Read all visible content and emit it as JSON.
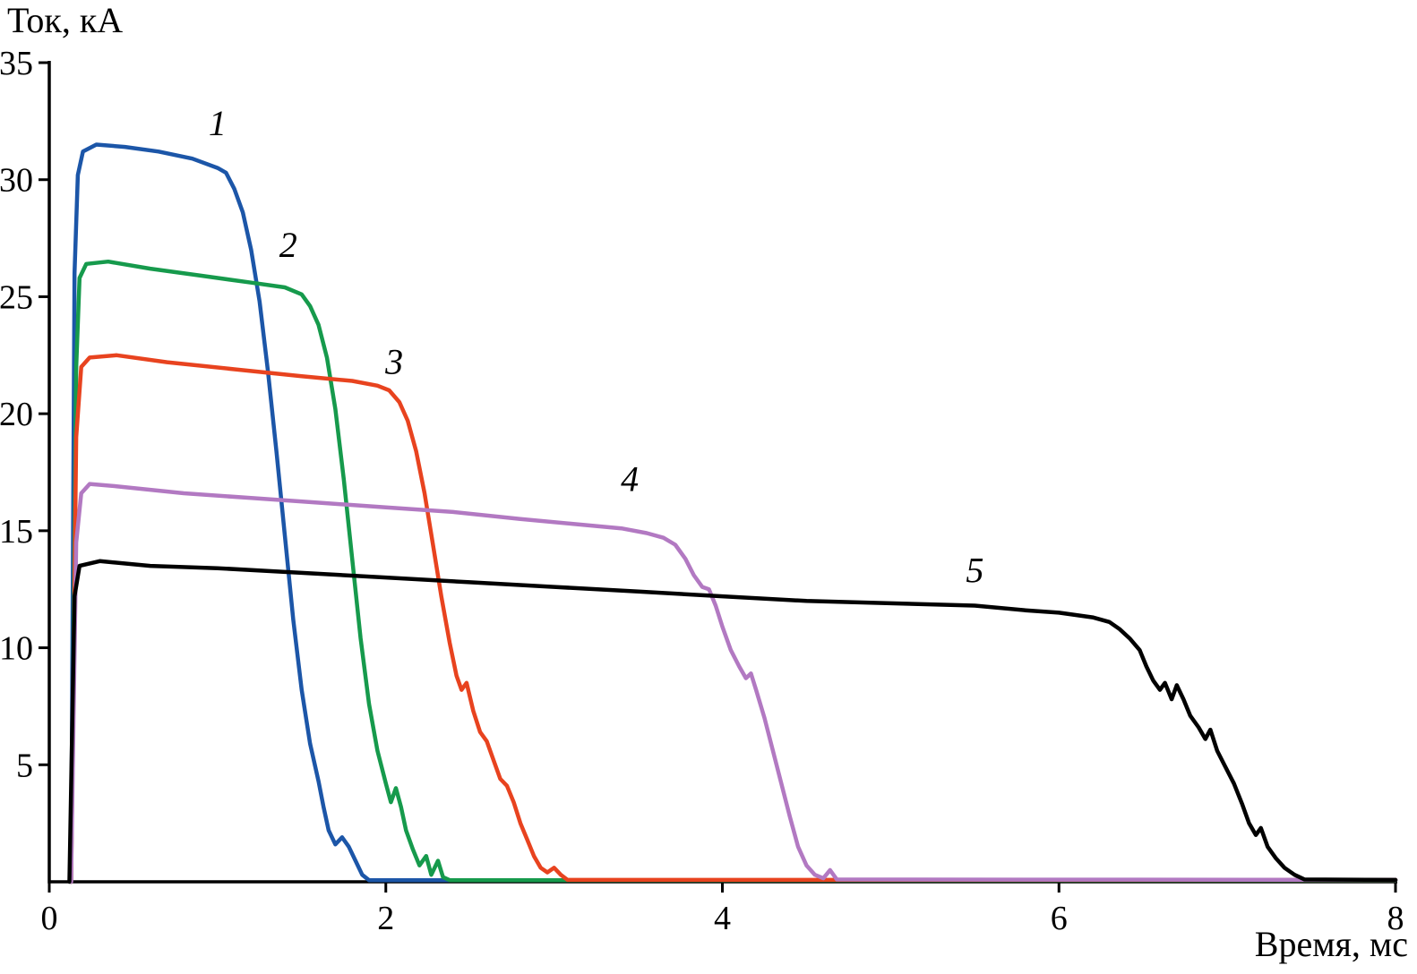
{
  "chart_data": {
    "type": "line",
    "title": "",
    "xlabel": "Время, мс",
    "ylabel": "Ток, кА",
    "xlim": [
      0,
      8
    ],
    "ylim": [
      0,
      35
    ],
    "x_ticks": [
      0,
      2,
      4,
      6,
      8
    ],
    "y_ticks": [
      5,
      10,
      15,
      20,
      25,
      30,
      35
    ],
    "grid": false,
    "legend_position": "none",
    "annotation_style": "italic numbers placed above each curve",
    "series": [
      {
        "name": "1",
        "color": "#1c56a8",
        "label_pos": [
          1.0,
          31.9
        ],
        "points": [
          [
            0.13,
            0
          ],
          [
            0.15,
            26
          ],
          [
            0.17,
            30.2
          ],
          [
            0.2,
            31.2
          ],
          [
            0.28,
            31.5
          ],
          [
            0.45,
            31.4
          ],
          [
            0.65,
            31.2
          ],
          [
            0.85,
            30.9
          ],
          [
            1.0,
            30.5
          ],
          [
            1.05,
            30.3
          ],
          [
            1.1,
            29.6
          ],
          [
            1.15,
            28.6
          ],
          [
            1.2,
            27.0
          ],
          [
            1.25,
            24.8
          ],
          [
            1.3,
            21.8
          ],
          [
            1.35,
            18.4
          ],
          [
            1.4,
            14.8
          ],
          [
            1.45,
            11.2
          ],
          [
            1.5,
            8.2
          ],
          [
            1.55,
            5.9
          ],
          [
            1.6,
            4.3
          ],
          [
            1.63,
            3.2
          ],
          [
            1.66,
            2.2
          ],
          [
            1.7,
            1.6
          ],
          [
            1.74,
            1.9
          ],
          [
            1.78,
            1.5
          ],
          [
            1.82,
            0.9
          ],
          [
            1.86,
            0.3
          ],
          [
            1.9,
            0.07
          ],
          [
            8,
            0.07
          ]
        ]
      },
      {
        "name": "2",
        "color": "#169a4c",
        "label_pos": [
          1.42,
          26.7
        ],
        "points": [
          [
            0.13,
            0
          ],
          [
            0.16,
            22
          ],
          [
            0.18,
            25.8
          ],
          [
            0.22,
            26.4
          ],
          [
            0.35,
            26.5
          ],
          [
            0.6,
            26.2
          ],
          [
            0.9,
            25.9
          ],
          [
            1.2,
            25.6
          ],
          [
            1.4,
            25.4
          ],
          [
            1.5,
            25.1
          ],
          [
            1.55,
            24.6
          ],
          [
            1.6,
            23.8
          ],
          [
            1.65,
            22.4
          ],
          [
            1.7,
            20.2
          ],
          [
            1.75,
            17.2
          ],
          [
            1.8,
            13.8
          ],
          [
            1.85,
            10.4
          ],
          [
            1.9,
            7.6
          ],
          [
            1.95,
            5.6
          ],
          [
            2.0,
            4.2
          ],
          [
            2.03,
            3.4
          ],
          [
            2.06,
            4.0
          ],
          [
            2.09,
            3.2
          ],
          [
            2.12,
            2.2
          ],
          [
            2.16,
            1.4
          ],
          [
            2.2,
            0.7
          ],
          [
            2.24,
            1.1
          ],
          [
            2.27,
            0.3
          ],
          [
            2.31,
            0.9
          ],
          [
            2.34,
            0.2
          ],
          [
            2.38,
            0.07
          ],
          [
            8,
            0.07
          ]
        ]
      },
      {
        "name": "3",
        "color": "#e8431f",
        "label_pos": [
          2.05,
          21.7
        ],
        "points": [
          [
            0.13,
            0
          ],
          [
            0.16,
            19
          ],
          [
            0.19,
            22.0
          ],
          [
            0.24,
            22.4
          ],
          [
            0.4,
            22.5
          ],
          [
            0.7,
            22.2
          ],
          [
            1.1,
            21.9
          ],
          [
            1.5,
            21.6
          ],
          [
            1.8,
            21.4
          ],
          [
            1.95,
            21.2
          ],
          [
            2.02,
            21.0
          ],
          [
            2.08,
            20.5
          ],
          [
            2.13,
            19.7
          ],
          [
            2.18,
            18.4
          ],
          [
            2.23,
            16.6
          ],
          [
            2.28,
            14.4
          ],
          [
            2.33,
            12.2
          ],
          [
            2.38,
            10.2
          ],
          [
            2.42,
            8.8
          ],
          [
            2.45,
            8.2
          ],
          [
            2.48,
            8.5
          ],
          [
            2.52,
            7.3
          ],
          [
            2.56,
            6.4
          ],
          [
            2.6,
            6.0
          ],
          [
            2.64,
            5.2
          ],
          [
            2.68,
            4.4
          ],
          [
            2.72,
            4.1
          ],
          [
            2.76,
            3.4
          ],
          [
            2.8,
            2.5
          ],
          [
            2.84,
            1.8
          ],
          [
            2.88,
            1.1
          ],
          [
            2.92,
            0.6
          ],
          [
            2.96,
            0.4
          ],
          [
            3.0,
            0.6
          ],
          [
            3.04,
            0.3
          ],
          [
            3.08,
            0.08
          ],
          [
            8,
            0.08
          ]
        ]
      },
      {
        "name": "4",
        "color": "#b279c2",
        "label_pos": [
          3.45,
          16.7
        ],
        "points": [
          [
            0.13,
            0
          ],
          [
            0.16,
            14.5
          ],
          [
            0.19,
            16.6
          ],
          [
            0.24,
            17.0
          ],
          [
            0.4,
            16.9
          ],
          [
            0.8,
            16.6
          ],
          [
            1.2,
            16.4
          ],
          [
            1.6,
            16.2
          ],
          [
            2.0,
            16.0
          ],
          [
            2.4,
            15.8
          ],
          [
            2.8,
            15.5
          ],
          [
            3.1,
            15.3
          ],
          [
            3.4,
            15.1
          ],
          [
            3.55,
            14.9
          ],
          [
            3.65,
            14.7
          ],
          [
            3.72,
            14.4
          ],
          [
            3.78,
            13.8
          ],
          [
            3.83,
            13.1
          ],
          [
            3.88,
            12.6
          ],
          [
            3.92,
            12.5
          ],
          [
            3.96,
            11.8
          ],
          [
            4.0,
            10.9
          ],
          [
            4.05,
            9.9
          ],
          [
            4.1,
            9.2
          ],
          [
            4.14,
            8.7
          ],
          [
            4.17,
            8.9
          ],
          [
            4.2,
            8.2
          ],
          [
            4.25,
            7.0
          ],
          [
            4.3,
            5.6
          ],
          [
            4.35,
            4.2
          ],
          [
            4.4,
            2.8
          ],
          [
            4.45,
            1.5
          ],
          [
            4.5,
            0.7
          ],
          [
            4.55,
            0.3
          ],
          [
            4.6,
            0.15
          ],
          [
            4.64,
            0.5
          ],
          [
            4.68,
            0.1
          ],
          [
            8,
            0.08
          ]
        ]
      },
      {
        "name": "5",
        "color": "#000000",
        "label_pos": [
          5.5,
          12.8
        ],
        "points": [
          [
            0.12,
            0
          ],
          [
            0.15,
            12.2
          ],
          [
            0.18,
            13.5
          ],
          [
            0.3,
            13.7
          ],
          [
            0.6,
            13.5
          ],
          [
            1.0,
            13.4
          ],
          [
            1.5,
            13.2
          ],
          [
            2.0,
            13.0
          ],
          [
            2.5,
            12.8
          ],
          [
            3.0,
            12.6
          ],
          [
            3.5,
            12.4
          ],
          [
            4.0,
            12.2
          ],
          [
            4.5,
            12.0
          ],
          [
            5.0,
            11.9
          ],
          [
            5.5,
            11.8
          ],
          [
            5.8,
            11.6
          ],
          [
            6.0,
            11.5
          ],
          [
            6.2,
            11.3
          ],
          [
            6.3,
            11.1
          ],
          [
            6.36,
            10.8
          ],
          [
            6.42,
            10.4
          ],
          [
            6.48,
            9.9
          ],
          [
            6.52,
            9.2
          ],
          [
            6.56,
            8.6
          ],
          [
            6.6,
            8.2
          ],
          [
            6.63,
            8.5
          ],
          [
            6.67,
            7.8
          ],
          [
            6.7,
            8.4
          ],
          [
            6.74,
            7.8
          ],
          [
            6.78,
            7.1
          ],
          [
            6.83,
            6.6
          ],
          [
            6.87,
            6.1
          ],
          [
            6.9,
            6.5
          ],
          [
            6.94,
            5.6
          ],
          [
            6.99,
            4.9
          ],
          [
            7.04,
            4.2
          ],
          [
            7.09,
            3.3
          ],
          [
            7.13,
            2.5
          ],
          [
            7.17,
            2.0
          ],
          [
            7.2,
            2.3
          ],
          [
            7.24,
            1.5
          ],
          [
            7.29,
            1.0
          ],
          [
            7.34,
            0.6
          ],
          [
            7.4,
            0.3
          ],
          [
            7.46,
            0.1
          ],
          [
            8,
            0.08
          ]
        ]
      }
    ]
  }
}
